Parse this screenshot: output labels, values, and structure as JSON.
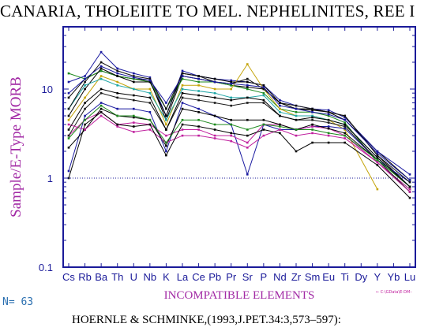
{
  "title": "CANARIA, THOLEIITE TO MEL. NEPHELINITES, REE I",
  "n_label": "N= 63",
  "source": "HOERNLE & SCHMINKE,(1993,J.PET.34:3,573–597):",
  "legend_key": "← C:\\GData\\E-DM–",
  "colors": {
    "axis": "#1a1a99",
    "ylabel": "#a22aa5",
    "xlabel": "#a22aa5",
    "tick_text": "#1a1a99",
    "reference_line": "#1a1a99",
    "series_palette": [
      "#000000",
      "#1a1aa0",
      "#1e8a1e",
      "#c0209e",
      "#20a6a6",
      "#c4a40a",
      "#1a1a1a",
      "#111111",
      "#000000"
    ]
  },
  "chart_data": {
    "type": "line",
    "title": "CANARIA, THOLEIITE TO MEL. NEPHELINITES, REE I",
    "xlabel": "INCOMPATIBLE ELEMENTS",
    "ylabel": "Sample/E-Type MORB",
    "yscale": "log",
    "ylim": [
      0.1,
      50
    ],
    "yticks": [
      0.1,
      1,
      10
    ],
    "ytick_labels": [
      "0.1",
      "1",
      "10"
    ],
    "reference_line_y": 1,
    "categories": [
      "Cs",
      "Rb",
      "Ba",
      "Th",
      "U",
      "Nb",
      "K",
      "La",
      "Ce",
      "Pb",
      "Pr",
      "Sr",
      "P",
      "Nd",
      "Zr",
      "Sm",
      "Eu",
      "Ti",
      "Dy",
      "Y",
      "Yb",
      "Lu"
    ],
    "series": [
      {
        "color": "#000000",
        "values": [
          8.0,
          13.0,
          16.0,
          14.0,
          13.0,
          12.5,
          4.5,
          14.0,
          13.0,
          12.0,
          11.0,
          10.5,
          10.0,
          7.0,
          6.0,
          6.0,
          5.5,
          4.5,
          null,
          2.0,
          null,
          0.95
        ]
      },
      {
        "color": "#1a1aa0",
        "values": [
          12.0,
          14.0,
          26.0,
          17.0,
          15.0,
          13.5,
          5.0,
          16.0,
          14.0,
          13.0,
          12.5,
          12.0,
          11.0,
          7.5,
          6.5,
          6.0,
          5.8,
          4.8,
          null,
          2.0,
          null,
          1.1
        ]
      },
      {
        "color": "#1e8a1e",
        "values": [
          15.0,
          13.0,
          16.0,
          14.0,
          13.0,
          12.0,
          6.0,
          13.0,
          12.0,
          12.0,
          11.0,
          10.0,
          9.0,
          6.0,
          5.5,
          5.5,
          5.0,
          4.2,
          null,
          1.5,
          null,
          0.75
        ]
      },
      {
        "color": "#000000",
        "values": [
          5.0,
          10.0,
          17.0,
          14.0,
          12.0,
          12.0,
          5.0,
          15.0,
          14.0,
          13.0,
          12.0,
          12.0,
          11.0,
          7.0,
          6.0,
          5.8,
          5.5,
          5.0,
          null,
          1.8,
          null,
          0.8
        ]
      },
      {
        "color": "#c4a40a",
        "values": [
          4.5,
          8.0,
          14.0,
          12.0,
          10.0,
          10.0,
          4.0,
          11.0,
          11.0,
          10.0,
          10.0,
          19.0,
          10.0,
          6.0,
          5.0,
          5.0,
          4.5,
          3.5,
          null,
          0.75,
          null,
          null
        ]
      },
      {
        "color": "#1a1aa0",
        "values": [
          1.2,
          5.0,
          7.0,
          6.0,
          6.0,
          5.5,
          2.0,
          7.0,
          6.0,
          5.0,
          4.0,
          1.1,
          4.0,
          3.5,
          3.5,
          3.8,
          3.8,
          3.6,
          null,
          1.6,
          null,
          0.9
        ]
      },
      {
        "color": "#c0209e",
        "values": [
          3.0,
          4.5,
          5.5,
          4.0,
          4.2,
          4.0,
          3.0,
          3.5,
          3.5,
          3.0,
          3.0,
          2.5,
          4.0,
          4.0,
          3.5,
          3.8,
          3.6,
          3.0,
          null,
          1.5,
          null,
          0.75
        ]
      },
      {
        "color": "#000000",
        "values": [
          2.2,
          3.5,
          6.0,
          5.0,
          4.8,
          4.5,
          2.3,
          6.0,
          5.5,
          5.0,
          4.5,
          4.5,
          4.5,
          4.0,
          3.5,
          4.0,
          3.6,
          3.2,
          null,
          1.6,
          null,
          0.8
        ]
      },
      {
        "color": "#20a6a6",
        "values": [
          6.0,
          11.0,
          13.0,
          11.0,
          10.0,
          9.0,
          4.5,
          10.0,
          9.5,
          9.0,
          8.0,
          8.0,
          8.5,
          5.5,
          5.0,
          5.0,
          4.5,
          4.0,
          null,
          1.7,
          null,
          0.8
        ]
      },
      {
        "color": "#1a1a1a",
        "values": [
          3.0,
          6.0,
          9.0,
          8.0,
          7.5,
          7.0,
          3.5,
          8.0,
          7.5,
          7.0,
          6.5,
          7.0,
          7.0,
          5.0,
          4.5,
          4.5,
          4.2,
          3.8,
          null,
          1.6,
          null,
          0.7
        ]
      },
      {
        "color": "#c0209e",
        "values": [
          4.0,
          3.5,
          5.0,
          3.8,
          3.3,
          3.5,
          2.5,
          3.0,
          3.0,
          2.8,
          2.6,
          2.2,
          3.0,
          3.5,
          3.0,
          3.2,
          3.0,
          2.8,
          null,
          1.5,
          null,
          0.7
        ]
      },
      {
        "color": "#000000",
        "values": [
          1.0,
          4.0,
          5.5,
          4.0,
          3.8,
          4.0,
          1.8,
          4.0,
          3.8,
          3.5,
          3.2,
          3.0,
          3.5,
          3.2,
          2.0,
          2.5,
          2.5,
          2.5,
          null,
          1.4,
          null,
          0.6
        ]
      },
      {
        "color": "#1e8a1e",
        "values": [
          2.8,
          4.5,
          6.5,
          5.0,
          5.0,
          4.5,
          2.5,
          4.5,
          4.5,
          4.0,
          4.0,
          3.5,
          4.0,
          3.8,
          3.5,
          3.5,
          3.2,
          3.0,
          null,
          1.6,
          null,
          0.8
        ]
      },
      {
        "color": "#111111",
        "values": [
          6.0,
          12.0,
          20.0,
          16.0,
          14.0,
          13.0,
          6.0,
          15.0,
          14.0,
          12.0,
          11.5,
          13.0,
          10.0,
          7.0,
          6.5,
          6.0,
          5.5,
          5.0,
          null,
          1.8,
          null,
          0.9
        ]
      },
      {
        "color": "#000000",
        "values": [
          3.5,
          7.0,
          10.0,
          9.0,
          8.5,
          8.0,
          3.5,
          9.0,
          8.5,
          8.0,
          7.5,
          8.0,
          7.5,
          5.0,
          4.5,
          4.8,
          4.5,
          4.0,
          null,
          1.7,
          null,
          0.8
        ]
      },
      {
        "color": "#1a1aa0",
        "values": [
          9.0,
          13.0,
          18.0,
          15.0,
          13.5,
          12.5,
          7.0,
          14.0,
          13.0,
          12.0,
          11.5,
          11.0,
          10.5,
          6.5,
          6.0,
          5.5,
          5.2,
          4.5,
          null,
          1.9,
          null,
          0.95
        ]
      }
    ]
  }
}
